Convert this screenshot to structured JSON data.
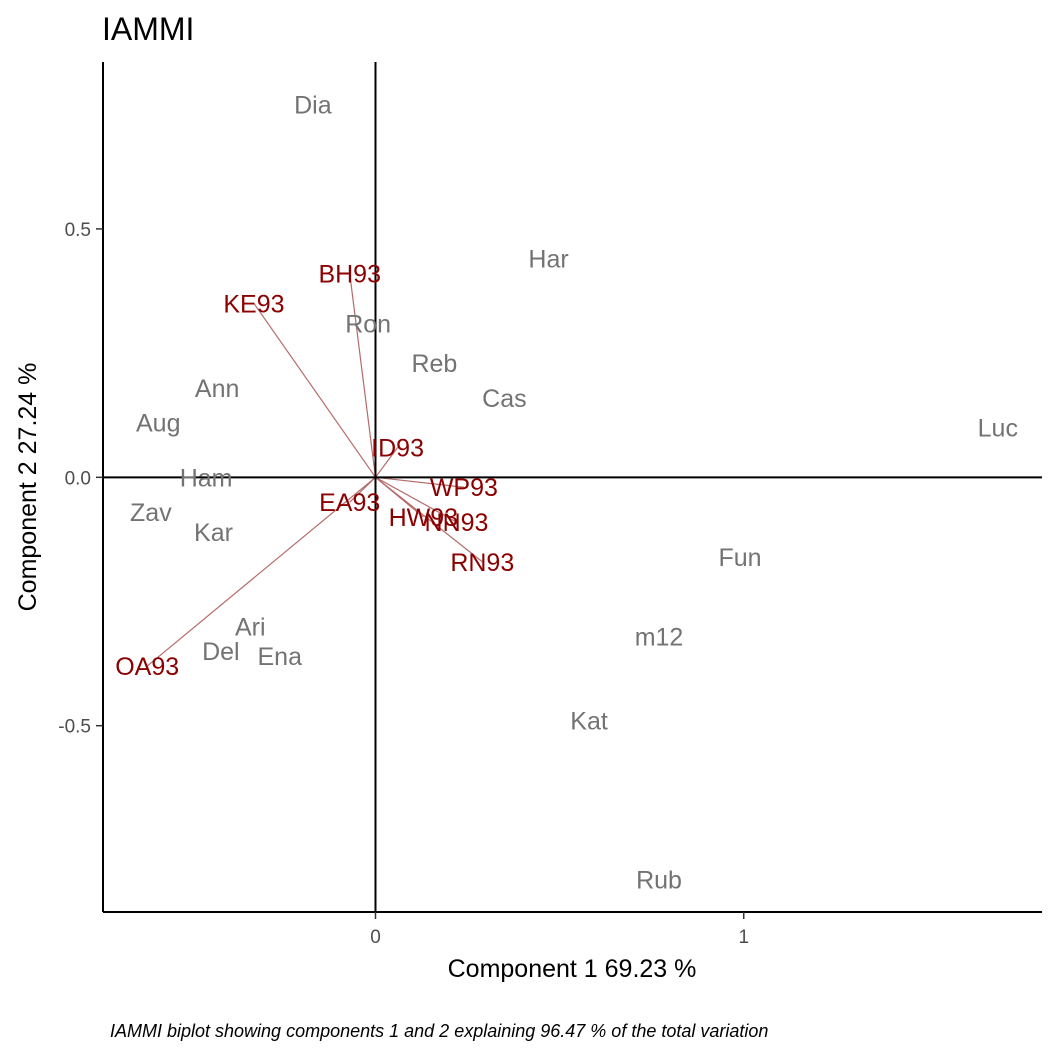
{
  "chart_data": {
    "type": "scatter",
    "title": "IAMMI",
    "xlabel": "Component 1 69.23 %",
    "ylabel": "Component 2 27.24 %",
    "caption": "IAMMI biplot showing components 1 and 2 explaining  96.47 % of the total variation",
    "xlim": [
      -0.74,
      1.81
    ],
    "ylim": [
      -0.875,
      0.836
    ],
    "xticks": [
      {
        "value": 0,
        "label": "0"
      },
      {
        "value": 1,
        "label": "1"
      }
    ],
    "yticks": [
      {
        "value": 0.5,
        "label": "0.5"
      },
      {
        "value": 0.0,
        "label": "0.0"
      },
      {
        "value": -0.5,
        "label": "-0.5"
      }
    ],
    "reference_lines": {
      "x": 0,
      "y": 0
    },
    "colors": {
      "genotype": "#737373",
      "environment": "#8b0000",
      "vector": "#b56b6b",
      "axis": "#000000"
    },
    "series": [
      {
        "name": "genotypes",
        "points": [
          {
            "label": "Dia",
            "x": -0.17,
            "y": 0.75
          },
          {
            "label": "Har",
            "x": 0.47,
            "y": 0.44
          },
          {
            "label": "Ron",
            "x": -0.02,
            "y": 0.31
          },
          {
            "label": "Reb",
            "x": 0.16,
            "y": 0.23
          },
          {
            "label": "Ann",
            "x": -0.43,
            "y": 0.18
          },
          {
            "label": "Cas",
            "x": 0.35,
            "y": 0.16
          },
          {
            "label": "Aug",
            "x": -0.59,
            "y": 0.11
          },
          {
            "label": "Luc",
            "x": 1.69,
            "y": 0.1
          },
          {
            "label": "Ham",
            "x": -0.46,
            "y": 0.0
          },
          {
            "label": "Zav",
            "x": -0.61,
            "y": -0.07
          },
          {
            "label": "Kar",
            "x": -0.44,
            "y": -0.11
          },
          {
            "label": "Fun",
            "x": 0.99,
            "y": -0.16
          },
          {
            "label": "Ari",
            "x": -0.34,
            "y": -0.3
          },
          {
            "label": "m12",
            "x": 0.77,
            "y": -0.32
          },
          {
            "label": "Del",
            "x": -0.42,
            "y": -0.35
          },
          {
            "label": "Ena",
            "x": -0.26,
            "y": -0.36
          },
          {
            "label": "Kat",
            "x": 0.58,
            "y": -0.49
          },
          {
            "label": "Rub",
            "x": 0.77,
            "y": -0.81
          }
        ]
      },
      {
        "name": "environments",
        "points": [
          {
            "label": "BH93",
            "x": -0.07,
            "y": 0.41
          },
          {
            "label": "KE93",
            "x": -0.33,
            "y": 0.35
          },
          {
            "label": "ID93",
            "x": 0.06,
            "y": 0.06
          },
          {
            "label": "WP93",
            "x": 0.24,
            "y": -0.02
          },
          {
            "label": "EA93",
            "x": -0.07,
            "y": -0.05
          },
          {
            "label": "HW93",
            "x": 0.13,
            "y": -0.08
          },
          {
            "label": "NN93",
            "x": 0.22,
            "y": -0.09
          },
          {
            "label": "RN93",
            "x": 0.29,
            "y": -0.17
          },
          {
            "label": "OA93",
            "x": -0.62,
            "y": -0.38
          }
        ]
      }
    ]
  }
}
